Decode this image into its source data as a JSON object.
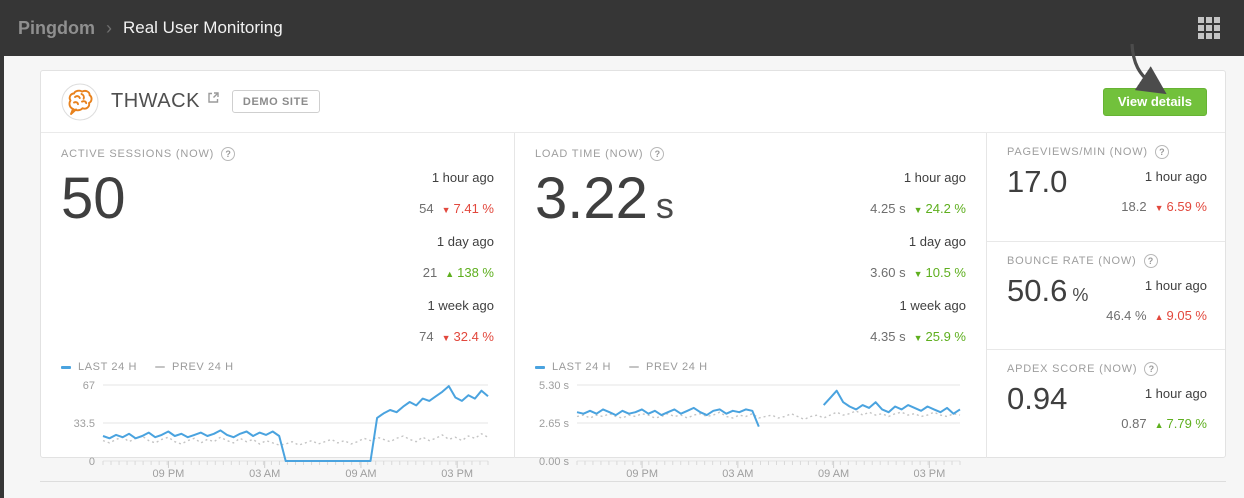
{
  "header": {
    "brand": "Pingdom",
    "separator": "›",
    "title": "Real User Monitoring"
  },
  "site": {
    "name": "THWACK",
    "badge": "DEMO SITE",
    "view_details_label": "View details"
  },
  "icons": {
    "help": "?",
    "up": "▲",
    "down": "▼"
  },
  "colors": {
    "accent_green": "#72c13c",
    "negative_red": "#e2483d",
    "positive_green": "#5eaf1e",
    "line_current": "#4aa3df",
    "line_previous": "#c4c4c4",
    "topbar_bg": "#363636"
  },
  "panels": {
    "active_sessions": {
      "title": "ACTIVE SESSIONS (NOW)",
      "value": "50",
      "unit": "",
      "comparisons": [
        {
          "label": "1 hour ago",
          "value": "54",
          "direction": "down",
          "pct": "7.41 %",
          "color": "red"
        },
        {
          "label": "1 day ago",
          "value": "21",
          "direction": "up",
          "pct": "138 %",
          "color": "green"
        },
        {
          "label": "1 week ago",
          "value": "74",
          "direction": "down",
          "pct": "32.4 %",
          "color": "red"
        }
      ]
    },
    "load_time": {
      "title": "LOAD TIME (NOW)",
      "value": "3.22",
      "unit": "s",
      "comparisons": [
        {
          "label": "1 hour ago",
          "value": "4.25 s",
          "direction": "down",
          "pct": "24.2 %",
          "color": "green"
        },
        {
          "label": "1 day ago",
          "value": "3.60 s",
          "direction": "down",
          "pct": "10.5 %",
          "color": "green"
        },
        {
          "label": "1 week ago",
          "value": "4.35 s",
          "direction": "down",
          "pct": "25.9 %",
          "color": "green"
        }
      ]
    },
    "pageviews": {
      "title": "PAGEVIEWS/MIN (NOW)",
      "value": "17.0",
      "unit": "",
      "comparison": {
        "label": "1 hour ago",
        "value": "18.2",
        "direction": "down",
        "pct": "6.59 %",
        "color": "red"
      }
    },
    "bounce_rate": {
      "title": "BOUNCE RATE (NOW)",
      "value": "50.6",
      "unit": "%",
      "comparison": {
        "label": "1 hour ago",
        "value": "46.4 %",
        "direction": "up",
        "pct": "9.05 %",
        "color": "red"
      }
    },
    "apdex": {
      "title": "APDEX SCORE (NOW)",
      "value": "0.94",
      "unit": "",
      "comparison": {
        "label": "1 hour ago",
        "value": "0.87",
        "direction": "up",
        "pct": "7.79 %",
        "color": "green"
      }
    }
  },
  "chart_data": [
    {
      "type": "line",
      "title": "Active sessions — last 24 h vs prev 24 h",
      "ylim": [
        0,
        67
      ],
      "yticks": [
        {
          "value": 67,
          "label": "67"
        },
        {
          "value": 33.5,
          "label": "33.5"
        },
        {
          "value": 0,
          "label": "0"
        }
      ],
      "xticks": [
        {
          "pos": 0.17,
          "label": "09 PM"
        },
        {
          "pos": 0.42,
          "label": "03 AM"
        },
        {
          "pos": 0.67,
          "label": "09 AM"
        },
        {
          "pos": 0.92,
          "label": "03 PM"
        }
      ],
      "grid": true,
      "legend_position": "top-left",
      "series": [
        {
          "name": "LAST 24 H",
          "color": "#4aa3df",
          "dashed": false,
          "values": [
            22,
            20,
            23,
            21,
            24,
            20,
            22,
            25,
            21,
            23,
            26,
            22,
            24,
            21,
            23,
            25,
            22,
            24,
            27,
            23,
            21,
            24,
            26,
            22,
            25,
            23,
            26,
            22,
            0,
            0,
            0,
            0,
            0,
            0,
            0,
            0,
            0,
            0,
            0,
            0,
            0,
            0,
            38,
            42,
            45,
            43,
            48,
            52,
            49,
            55,
            53,
            57,
            61,
            66,
            56,
            53,
            58,
            55,
            62,
            57
          ]
        },
        {
          "name": "PREV 24 H",
          "color": "#c4c4c4",
          "dashed": true,
          "values": [
            18,
            16,
            19,
            21,
            17,
            20,
            22,
            18,
            16,
            19,
            21,
            17,
            15,
            18,
            20,
            16,
            19,
            17,
            21,
            18,
            16,
            20,
            17,
            19,
            15,
            18,
            16,
            14,
            15,
            17,
            14,
            16,
            18,
            15,
            17,
            19,
            16,
            18,
            15,
            17,
            20,
            18,
            21,
            19,
            17,
            20,
            22,
            19,
            17,
            21,
            18,
            20,
            23,
            19,
            21,
            18,
            22,
            20,
            24,
            21
          ]
        }
      ]
    },
    {
      "type": "line",
      "title": "Load time — last 24 h vs prev 24 h",
      "ylim": [
        0,
        5.3
      ],
      "yticks": [
        {
          "value": 5.3,
          "label": "5.30 s"
        },
        {
          "value": 2.65,
          "label": "2.65 s"
        },
        {
          "value": 0,
          "label": "0.00 s"
        }
      ],
      "xticks": [
        {
          "pos": 0.17,
          "label": "09 PM"
        },
        {
          "pos": 0.42,
          "label": "03 AM"
        },
        {
          "pos": 0.67,
          "label": "09 AM"
        },
        {
          "pos": 0.92,
          "label": "03 PM"
        }
      ],
      "grid": true,
      "legend_position": "top-left",
      "series": [
        {
          "name": "LAST 24 H",
          "color": "#4aa3df",
          "dashed": false,
          "values": [
            3.4,
            3.3,
            3.5,
            3.3,
            3.6,
            3.4,
            3.2,
            3.5,
            3.3,
            3.4,
            3.6,
            3.3,
            3.5,
            3.2,
            3.4,
            3.6,
            3.3,
            3.5,
            3.7,
            3.4,
            3.2,
            3.5,
            3.6,
            3.3,
            3.5,
            3.4,
            3.6,
            3.5,
            2.4,
            null,
            null,
            null,
            null,
            null,
            null,
            null,
            null,
            null,
            3.9,
            4.4,
            4.9,
            4.1,
            3.8,
            3.6,
            3.9,
            3.7,
            4.1,
            3.6,
            3.4,
            3.8,
            3.6,
            3.9,
            3.7,
            3.5,
            3.8,
            3.6,
            3.4,
            3.7,
            3.3,
            3.6
          ]
        },
        {
          "name": "PREV 24 H",
          "color": "#c4c4c4",
          "dashed": true,
          "values": [
            3.1,
            3.2,
            3.0,
            3.2,
            3.1,
            3.3,
            3.1,
            3.0,
            3.2,
            3.1,
            3.3,
            3.2,
            3.0,
            3.1,
            3.3,
            3.1,
            3.2,
            3.0,
            3.2,
            3.3,
            3.1,
            3.2,
            3.4,
            3.1,
            3.0,
            3.2,
            3.1,
            3.3,
            3.0,
            3.1,
            3.2,
            3.0,
            3.1,
            3.3,
            3.1,
            2.9,
            3.1,
            3.2,
            3.0,
            3.2,
            3.4,
            3.2,
            3.3,
            3.5,
            3.2,
            3.4,
            3.2,
            3.3,
            3.1,
            3.3,
            3.4,
            3.2,
            3.3,
            3.1,
            3.2,
            3.4,
            3.2,
            3.1,
            3.3,
            3.2
          ]
        }
      ]
    }
  ]
}
